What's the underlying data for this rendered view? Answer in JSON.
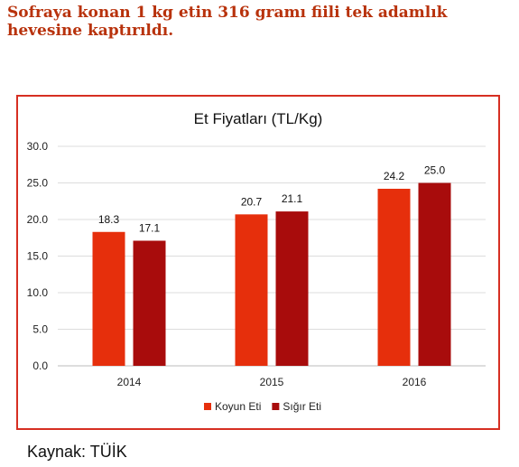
{
  "headline": {
    "line1": "Sofraya konan 1 kg etin 316 gramı fiili tek adamlık",
    "line2": "hevesine kaptırıldı."
  },
  "source": "Kaynak: TÜİK",
  "chart_data": {
    "type": "bar",
    "title": "Et Fiyatları (TL/Kg)",
    "xlabel": "",
    "ylabel": "",
    "categories": [
      "2014",
      "2015",
      "2016"
    ],
    "series": [
      {
        "name": "Koyun Eti",
        "values": [
          18.3,
          20.7,
          24.2
        ],
        "color": "#e62f0c"
      },
      {
        "name": "Sığır Eti",
        "values": [
          17.1,
          21.1,
          25.0
        ],
        "color": "#a80c0c"
      }
    ],
    "ylim": [
      0,
      30
    ],
    "yticks": [
      "0.0",
      "5.0",
      "10.0",
      "15.0",
      "20.0",
      "25.0",
      "30.0"
    ],
    "grid": true,
    "legend": "bottom-center",
    "gridColor": "#dddddd",
    "frameColor": "#d62f22"
  }
}
